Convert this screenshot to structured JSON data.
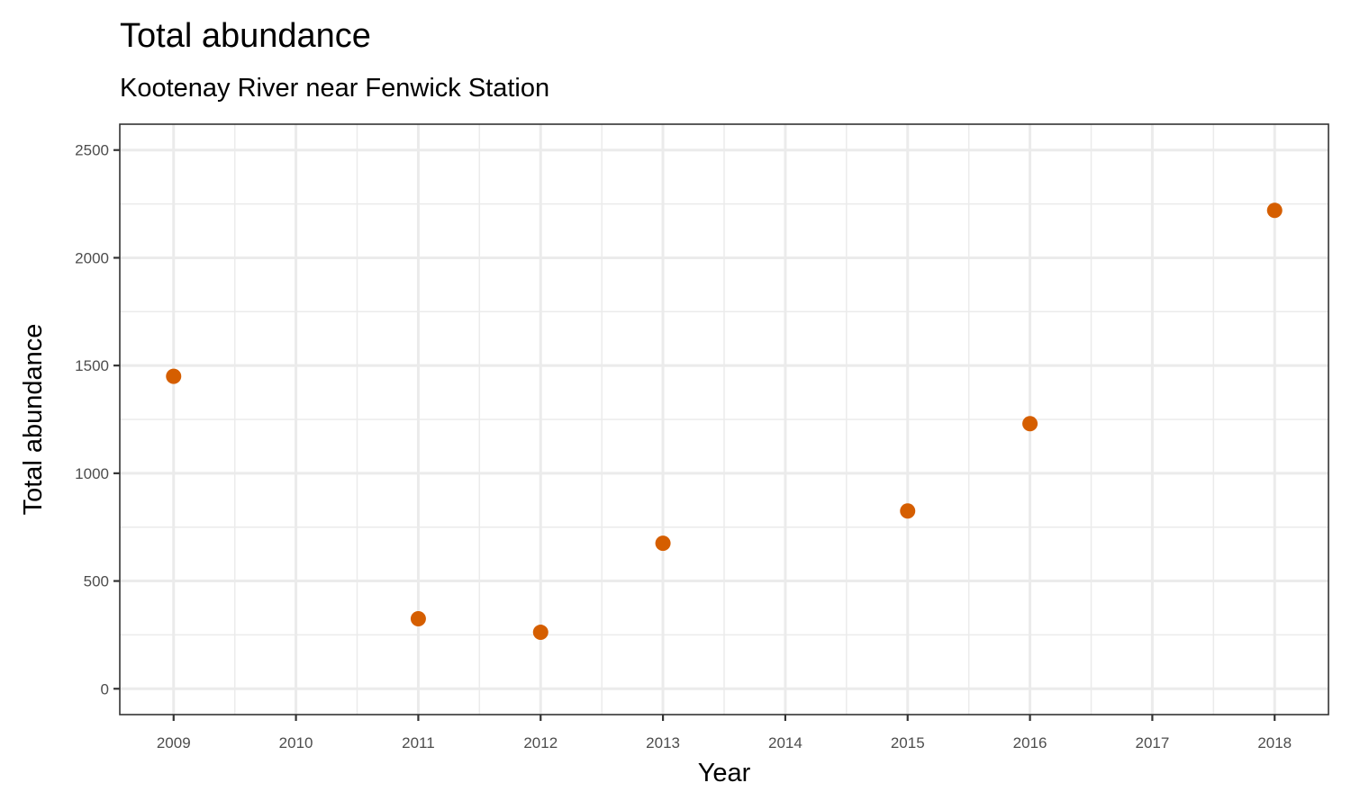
{
  "chart_data": {
    "type": "scatter",
    "title": "Total abundance",
    "subtitle": "Kootenay River near Fenwick Station",
    "xlabel": "Year",
    "ylabel": "Total abundance",
    "xlim": [
      2008.56,
      2018.44
    ],
    "ylim": [
      -120,
      2620
    ],
    "x_ticks": [
      2009,
      2010,
      2011,
      2012,
      2013,
      2014,
      2015,
      2016,
      2017,
      2018
    ],
    "y_ticks": [
      0,
      500,
      1000,
      1500,
      2000,
      2500
    ],
    "grid": true,
    "legend": "none",
    "point_color": "#D55E00",
    "series": [
      {
        "x": [
          2009,
          2011,
          2012,
          2013,
          2015,
          2016,
          2018
        ],
        "y": [
          1450,
          325,
          262,
          675,
          825,
          1230,
          2220
        ]
      }
    ]
  }
}
